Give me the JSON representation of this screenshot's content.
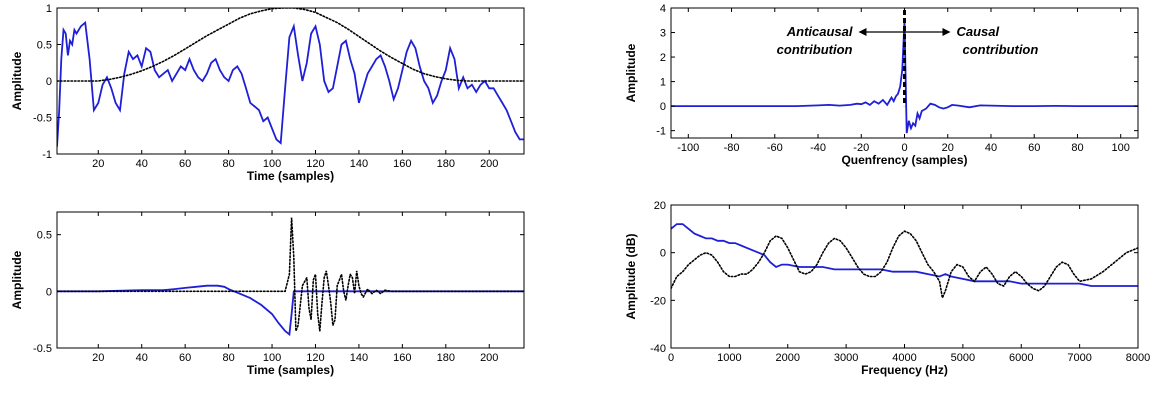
{
  "chart_data": [
    {
      "id": "top-left",
      "type": "line",
      "xlabel": "Time (samples)",
      "ylabel": "Amplitude",
      "xlim": [
        1,
        216
      ],
      "ylim": [
        -1,
        1
      ],
      "xticks": [
        20,
        40,
        60,
        80,
        100,
        120,
        140,
        160,
        180,
        200
      ],
      "xtick_labels": [
        "20",
        "40",
        "60",
        "80",
        "100",
        "120",
        "140",
        "160",
        "180",
        "200"
      ],
      "yticks": [
        -1,
        -0.5,
        0,
        0.5,
        1
      ],
      "ytick_labels": [
        "-1",
        "-0.5",
        "0",
        "0.5",
        "1"
      ],
      "series": [
        {
          "style": "solid",
          "color": "#1f1fd8",
          "x": [
            1,
            2,
            3,
            4,
            5,
            6,
            7,
            8,
            9,
            10,
            12,
            14,
            16,
            18,
            20,
            22,
            24,
            26,
            28,
            30,
            32,
            34,
            36,
            38,
            40,
            42,
            44,
            46,
            48,
            50,
            52,
            54,
            56,
            58,
            60,
            62,
            64,
            66,
            68,
            70,
            72,
            74,
            76,
            78,
            80,
            82,
            84,
            86,
            88,
            90,
            92,
            94,
            96,
            98,
            100,
            102,
            104,
            106,
            108,
            110,
            112,
            114,
            116,
            118,
            120,
            122,
            124,
            126,
            128,
            130,
            132,
            134,
            136,
            138,
            140,
            142,
            144,
            146,
            148,
            150,
            152,
            154,
            156,
            158,
            160,
            162,
            164,
            166,
            168,
            170,
            172,
            174,
            176,
            178,
            180,
            182,
            184,
            186,
            188,
            190,
            192,
            194,
            196,
            198,
            200,
            202,
            204,
            206,
            208,
            210,
            212,
            214,
            216
          ],
          "y": [
            -0.9,
            -0.4,
            0.3,
            0.7,
            0.65,
            0.35,
            0.55,
            0.5,
            0.7,
            0.65,
            0.75,
            0.8,
            0.3,
            -0.4,
            -0.3,
            -0.05,
            0.05,
            -0.1,
            -0.3,
            -0.4,
            0.1,
            0.4,
            0.3,
            0.35,
            0.2,
            0.45,
            0.4,
            0.15,
            0.05,
            0.1,
            0.15,
            0.0,
            0.1,
            0.2,
            0.15,
            0.3,
            0.15,
            0.05,
            0.0,
            0.1,
            0.25,
            0.3,
            0.15,
            0.05,
            0.0,
            0.15,
            0.2,
            0.1,
            -0.1,
            -0.3,
            -0.35,
            -0.4,
            -0.55,
            -0.5,
            -0.65,
            -0.8,
            -0.85,
            -0.1,
            0.6,
            0.75,
            0.35,
            0.0,
            0.25,
            0.65,
            0.75,
            0.5,
            0.0,
            -0.15,
            -0.1,
            0.2,
            0.5,
            0.55,
            0.3,
            0.1,
            -0.3,
            -0.1,
            0.1,
            0.2,
            0.3,
            0.35,
            0.2,
            0.0,
            -0.25,
            -0.1,
            0.15,
            0.4,
            0.55,
            0.45,
            0.2,
            0.0,
            -0.1,
            -0.3,
            -0.2,
            0.0,
            0.15,
            0.45,
            0.3,
            -0.1,
            0.05,
            -0.1,
            -0.05,
            -0.15,
            -0.05,
            0.0,
            -0.1,
            -0.1,
            -0.2,
            -0.3,
            -0.4,
            -0.55,
            -0.7,
            -0.8,
            -0.8
          ]
        },
        {
          "style": "dotted",
          "color": "#000000",
          "x": [
            1,
            5,
            10,
            15,
            20,
            22,
            25,
            30,
            35,
            40,
            45,
            50,
            55,
            60,
            65,
            70,
            75,
            80,
            85,
            90,
            95,
            100,
            105,
            110,
            115,
            120,
            125,
            130,
            135,
            140,
            145,
            150,
            155,
            160,
            165,
            170,
            175,
            180,
            185,
            190,
            195,
            200,
            205,
            210,
            216
          ],
          "y": [
            0,
            0,
            0,
            0,
            0,
            0.01,
            0.02,
            0.05,
            0.09,
            0.14,
            0.2,
            0.27,
            0.35,
            0.44,
            0.53,
            0.62,
            0.7,
            0.78,
            0.86,
            0.92,
            0.96,
            0.99,
            1.0,
            1.0,
            0.98,
            0.94,
            0.87,
            0.8,
            0.71,
            0.61,
            0.51,
            0.41,
            0.32,
            0.24,
            0.16,
            0.1,
            0.06,
            0.03,
            0.01,
            0,
            0,
            0,
            0,
            0,
            0
          ]
        }
      ]
    },
    {
      "id": "top-right",
      "type": "line",
      "xlabel": "Quenfrency (samples)",
      "ylabel": "Amplitude",
      "xlim": [
        -108,
        108
      ],
      "ylim": [
        -1.3,
        4
      ],
      "xticks": [
        -100,
        -80,
        -60,
        -40,
        -20,
        0,
        20,
        40,
        60,
        80,
        100
      ],
      "xtick_labels": [
        "-100",
        "-80",
        "-60",
        "-40",
        "-20",
        "0",
        "20",
        "40",
        "60",
        "80",
        "100"
      ],
      "yticks": [
        -1,
        0,
        1,
        2,
        3,
        4
      ],
      "ytick_labels": [
        "-1",
        "0",
        "1",
        "2",
        "3",
        "4"
      ],
      "annotations": {
        "left": [
          "Anticausal",
          "contribution"
        ],
        "right": [
          "Causal",
          "contribution"
        ]
      },
      "marker_x": 0,
      "series": [
        {
          "style": "solid",
          "color": "#1f1fd8",
          "x": [
            -108,
            -90,
            -70,
            -50,
            -40,
            -35,
            -30,
            -25,
            -22,
            -20,
            -18,
            -16,
            -14,
            -12,
            -10,
            -8,
            -6,
            -5,
            -4,
            -3,
            -2,
            -1,
            0,
            1,
            2,
            3,
            4,
            5,
            6,
            7,
            8,
            10,
            12,
            14,
            16,
            18,
            20,
            22,
            25,
            30,
            35,
            40,
            50,
            60,
            70,
            80,
            90,
            100,
            108
          ],
          "y": [
            0,
            0,
            0,
            0,
            0.03,
            0.05,
            0.02,
            0.05,
            0.1,
            0.08,
            0.15,
            0.05,
            0.2,
            0.1,
            0.25,
            0.05,
            0.35,
            0.2,
            0.4,
            0.5,
            0.8,
            1.5,
            3.5,
            -1.1,
            -0.6,
            -0.9,
            -0.7,
            -0.8,
            -0.3,
            -0.5,
            -0.2,
            -0.1,
            0.1,
            0.05,
            -0.05,
            -0.1,
            -0.05,
            0.05,
            0.02,
            -0.05,
            0.03,
            0.02,
            0.0,
            0.0,
            0.01,
            0.0,
            0.0,
            0.0,
            0.0
          ]
        }
      ]
    },
    {
      "id": "bottom-left",
      "type": "line",
      "xlabel": "Time (samples)",
      "ylabel": "Amplitude",
      "xlim": [
        1,
        216
      ],
      "ylim": [
        -0.5,
        0.7
      ],
      "xticks": [
        20,
        40,
        60,
        80,
        100,
        120,
        140,
        160,
        180,
        200
      ],
      "xtick_labels": [
        "20",
        "40",
        "60",
        "80",
        "100",
        "120",
        "140",
        "160",
        "180",
        "200"
      ],
      "yticks": [
        -0.5,
        0,
        0.5
      ],
      "ytick_labels": [
        "-0.5",
        "0",
        "0.5"
      ],
      "series": [
        {
          "style": "solid",
          "color": "#1f1fd8",
          "x": [
            1,
            20,
            40,
            50,
            55,
            60,
            65,
            70,
            75,
            78,
            80,
            85,
            90,
            95,
            100,
            103,
            106,
            108,
            109,
            110,
            112,
            120,
            140,
            160,
            180,
            200,
            216
          ],
          "y": [
            0,
            0,
            0.01,
            0.01,
            0.02,
            0.03,
            0.04,
            0.05,
            0.05,
            0.04,
            0.02,
            -0.02,
            -0.06,
            -0.12,
            -0.2,
            -0.28,
            -0.35,
            -0.38,
            -0.2,
            0,
            0,
            0,
            0,
            0,
            0,
            0,
            0
          ]
        },
        {
          "style": "dotted",
          "color": "#000000",
          "x": [
            1,
            100,
            106,
            108,
            109,
            110,
            111,
            112,
            114,
            116,
            117,
            118,
            119,
            120,
            121,
            122,
            123,
            124,
            125,
            126,
            127,
            128,
            129,
            130,
            131,
            132,
            133,
            134,
            135,
            136,
            137,
            138,
            139,
            140,
            141,
            142,
            144,
            146,
            148,
            150,
            152,
            155,
            158,
            160,
            216
          ],
          "y": [
            0,
            0,
            0,
            0.15,
            0.65,
            0.3,
            -0.35,
            -0.3,
            0.05,
            0.12,
            -0.15,
            -0.25,
            0.1,
            0.15,
            -0.2,
            -0.35,
            -0.1,
            0.12,
            0.18,
            0.05,
            -0.1,
            -0.3,
            -0.25,
            0.05,
            0.1,
            0.15,
            0.0,
            -0.08,
            0.05,
            0.15,
            0.12,
            -0.02,
            0.18,
            0.05,
            -0.02,
            -0.05,
            0.02,
            -0.02,
            0.01,
            -0.02,
            0.01,
            0.0,
            0.0,
            0.0,
            0.0
          ]
        }
      ]
    },
    {
      "id": "bottom-right",
      "type": "line",
      "xlabel": "Frequency (Hz)",
      "ylabel": "Amplitude (dB)",
      "xlim": [
        0,
        8000
      ],
      "ylim": [
        -40,
        20
      ],
      "xticks": [
        0,
        1000,
        2000,
        3000,
        4000,
        5000,
        6000,
        7000,
        8000
      ],
      "xtick_labels": [
        "0",
        "1000",
        "2000",
        "3000",
        "4000",
        "5000",
        "6000",
        "7000",
        "8000"
      ],
      "yticks": [
        -40,
        -20,
        0,
        20
      ],
      "ytick_labels": [
        "-40",
        "-20",
        "0",
        "20"
      ],
      "series": [
        {
          "style": "solid",
          "color": "#1f1fd8",
          "x": [
            0,
            100,
            200,
            300,
            400,
            500,
            600,
            700,
            800,
            900,
            1000,
            1100,
            1200,
            1300,
            1400,
            1500,
            1600,
            1700,
            1800,
            1900,
            2000,
            2200,
            2400,
            2600,
            2800,
            3000,
            3200,
            3400,
            3600,
            3800,
            4000,
            4200,
            4400,
            4600,
            4700,
            4800,
            5000,
            5200,
            5400,
            5600,
            5800,
            6000,
            6200,
            6400,
            6600,
            6800,
            7000,
            7200,
            7400,
            7600,
            7800,
            8000
          ],
          "y": [
            10,
            12,
            12,
            10,
            8,
            7,
            6,
            6,
            5,
            5,
            4,
            4,
            3,
            2,
            1,
            0,
            -1,
            -4,
            -6,
            -5,
            -5,
            -6,
            -6,
            -6,
            -7,
            -7,
            -7,
            -7,
            -7,
            -8,
            -8,
            -8,
            -9,
            -10,
            -9,
            -10,
            -11,
            -12,
            -12,
            -12,
            -12,
            -13,
            -13,
            -13,
            -13,
            -13,
            -13,
            -14,
            -14,
            -14,
            -14,
            -14
          ]
        },
        {
          "style": "dotted",
          "color": "#000000",
          "x": [
            0,
            100,
            200,
            300,
            400,
            500,
            600,
            700,
            800,
            900,
            1000,
            1100,
            1200,
            1300,
            1400,
            1500,
            1600,
            1700,
            1800,
            1900,
            2000,
            2100,
            2200,
            2300,
            2400,
            2500,
            2600,
            2700,
            2800,
            2900,
            3000,
            3100,
            3200,
            3300,
            3400,
            3500,
            3600,
            3700,
            3800,
            3900,
            4000,
            4100,
            4200,
            4300,
            4400,
            4500,
            4600,
            4650,
            4700,
            4800,
            4900,
            5000,
            5100,
            5200,
            5300,
            5400,
            5500,
            5600,
            5700,
            5800,
            5900,
            6000,
            6100,
            6200,
            6300,
            6400,
            6500,
            6600,
            6700,
            6800,
            6900,
            7000,
            7200,
            7400,
            7600,
            7800,
            8000
          ],
          "y": [
            -15,
            -10,
            -8,
            -5,
            -3,
            -1,
            0,
            -1,
            -4,
            -8,
            -10,
            -10,
            -9,
            -9,
            -7,
            -4,
            0,
            5,
            7,
            6,
            2,
            -3,
            -8,
            -9,
            -8,
            -5,
            0,
            4,
            6,
            5,
            2,
            -2,
            -6,
            -9,
            -10,
            -10,
            -8,
            -4,
            2,
            7,
            9,
            8,
            5,
            0,
            -5,
            -8,
            -12,
            -19,
            -16,
            -8,
            -5,
            -6,
            -10,
            -12,
            -8,
            -6,
            -9,
            -13,
            -14,
            -10,
            -8,
            -10,
            -13,
            -15,
            -16,
            -14,
            -10,
            -6,
            -4,
            -5,
            -9,
            -12,
            -11,
            -8,
            -4,
            0,
            2
          ]
        }
      ]
    }
  ]
}
